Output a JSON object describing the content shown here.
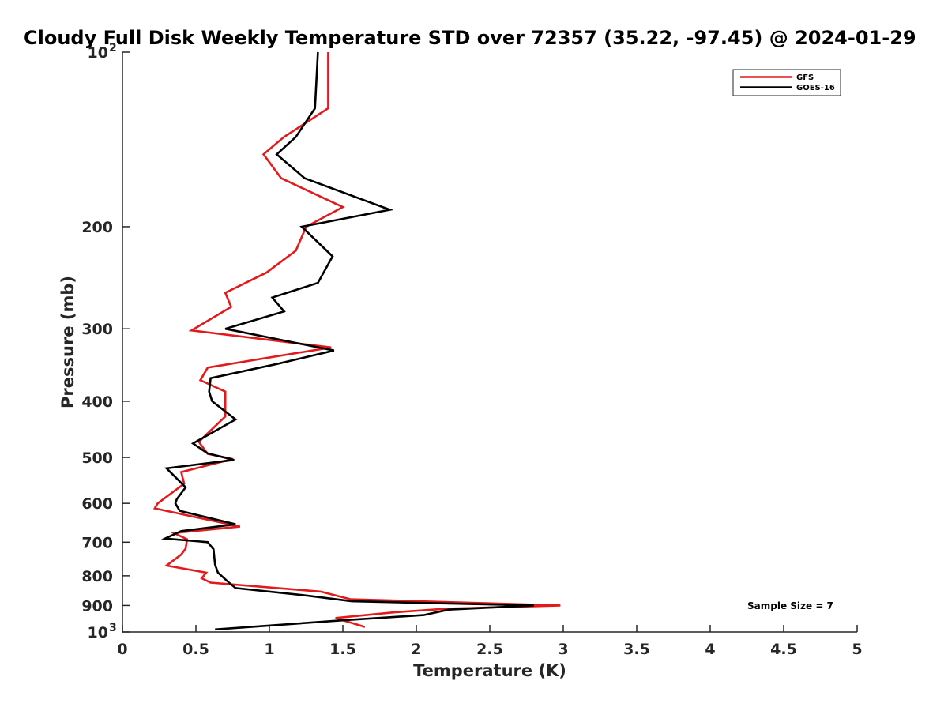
{
  "chart_data": {
    "type": "line",
    "title": "Cloudy Full Disk Weekly Temperature STD over 72357 (35.22, -97.45) @ 2024-01-29",
    "xlabel": "Temperature (K)",
    "ylabel": "Pressure (mb)",
    "xlim": [
      0,
      5
    ],
    "ylim": [
      1000,
      100
    ],
    "yscale": "log",
    "x_ticks": [
      0,
      0.5,
      1,
      1.5,
      2,
      2.5,
      3,
      3.5,
      4,
      4.5,
      5
    ],
    "x_tick_labels": [
      "0",
      "0.5",
      "1",
      "1.5",
      "2",
      "2.5",
      "3",
      "3.5",
      "4",
      "4.5",
      "5"
    ],
    "y_ticks": [
      100,
      200,
      300,
      400,
      500,
      600,
      700,
      800,
      900,
      1000
    ],
    "y_tick_labels": [
      {
        "base": "10",
        "exp": "2"
      },
      {
        "base": "200",
        "exp": ""
      },
      {
        "base": "300",
        "exp": ""
      },
      {
        "base": "400",
        "exp": ""
      },
      {
        "base": "500",
        "exp": ""
      },
      {
        "base": "600",
        "exp": ""
      },
      {
        "base": "700",
        "exp": ""
      },
      {
        "base": "800",
        "exp": ""
      },
      {
        "base": "900",
        "exp": ""
      },
      {
        "base": "10",
        "exp": "3"
      }
    ],
    "grid": false,
    "legend_position": "top-right",
    "annotation": "Sample Size = 7",
    "series": [
      {
        "name": "GFS",
        "color": "#e31a1c",
        "points": [
          [
            1.4,
            100
          ],
          [
            1.4,
            125
          ],
          [
            1.1,
            140
          ],
          [
            0.96,
            150
          ],
          [
            1.08,
            165
          ],
          [
            1.5,
            185
          ],
          [
            1.25,
            200
          ],
          [
            1.18,
            220
          ],
          [
            0.98,
            240
          ],
          [
            0.7,
            260
          ],
          [
            0.74,
            275
          ],
          [
            0.47,
            302
          ],
          [
            1.42,
            323
          ],
          [
            0.58,
            350
          ],
          [
            0.53,
            368
          ],
          [
            0.7,
            385
          ],
          [
            0.7,
            405
          ],
          [
            0.7,
            425
          ],
          [
            0.52,
            470
          ],
          [
            0.58,
            493
          ],
          [
            0.75,
            503
          ],
          [
            0.4,
            530
          ],
          [
            0.42,
            555
          ],
          [
            0.24,
            600
          ],
          [
            0.22,
            612
          ],
          [
            0.8,
            658
          ],
          [
            0.35,
            675
          ],
          [
            0.44,
            692
          ],
          [
            0.43,
            718
          ],
          [
            0.4,
            735
          ],
          [
            0.3,
            768
          ],
          [
            0.57,
            790
          ],
          [
            0.54,
            808
          ],
          [
            0.6,
            822
          ],
          [
            1.35,
            852
          ],
          [
            1.55,
            878
          ],
          [
            2.98,
            900
          ],
          [
            2.2,
            912
          ],
          [
            1.85,
            925
          ],
          [
            1.45,
            946
          ],
          [
            1.65,
            980
          ]
        ]
      },
      {
        "name": "GOES-16",
        "color": "#000000",
        "points": [
          [
            1.33,
            100
          ],
          [
            1.31,
            125
          ],
          [
            1.18,
            140
          ],
          [
            1.05,
            150
          ],
          [
            1.24,
            165
          ],
          [
            1.82,
            187
          ],
          [
            1.22,
            200
          ],
          [
            1.43,
            225
          ],
          [
            1.33,
            250
          ],
          [
            1.02,
            265
          ],
          [
            1.1,
            280
          ],
          [
            0.7,
            300
          ],
          [
            1.44,
            327
          ],
          [
            1.05,
            345
          ],
          [
            0.6,
            365
          ],
          [
            0.59,
            385
          ],
          [
            0.61,
            400
          ],
          [
            0.77,
            430
          ],
          [
            0.48,
            473
          ],
          [
            0.58,
            492
          ],
          [
            0.76,
            505
          ],
          [
            0.3,
            522
          ],
          [
            0.43,
            563
          ],
          [
            0.37,
            590
          ],
          [
            0.36,
            600
          ],
          [
            0.39,
            618
          ],
          [
            0.77,
            652
          ],
          [
            0.4,
            670
          ],
          [
            0.29,
            690
          ],
          [
            0.58,
            700
          ],
          [
            0.62,
            720
          ],
          [
            0.63,
            765
          ],
          [
            0.65,
            790
          ],
          [
            0.72,
            820
          ],
          [
            0.77,
            840
          ],
          [
            1.25,
            865
          ],
          [
            1.56,
            885
          ],
          [
            2.8,
            900
          ],
          [
            2.22,
            915
          ],
          [
            2.05,
            935
          ],
          [
            1.49,
            955
          ],
          [
            0.63,
            990
          ]
        ]
      }
    ]
  }
}
